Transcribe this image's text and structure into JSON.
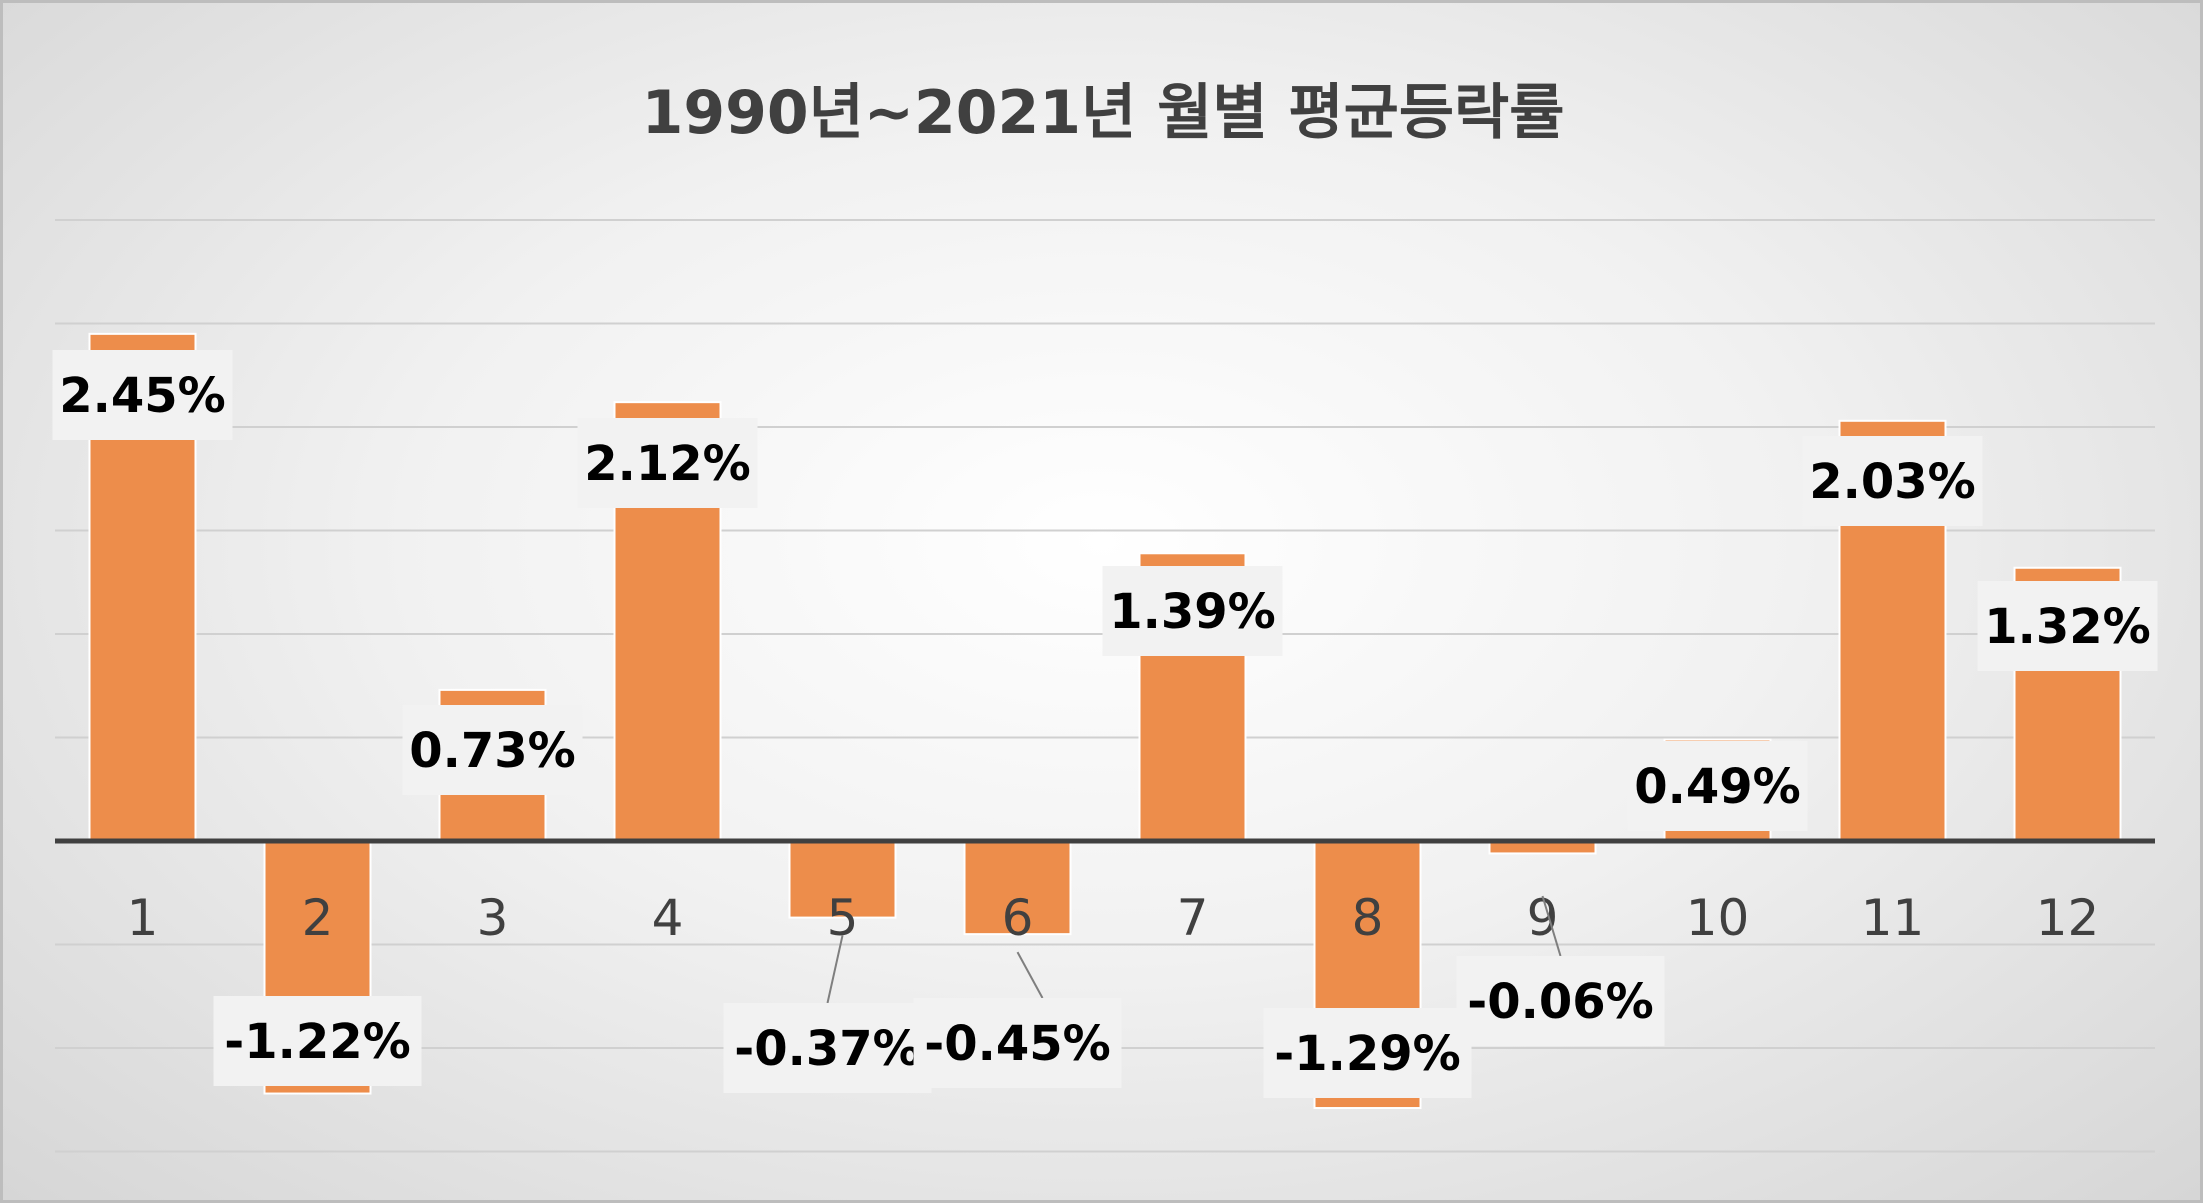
{
  "chart_data": {
    "type": "bar",
    "title": "1990년~2021년 월별 평균등락률",
    "xlabel": "",
    "ylabel": "",
    "categories": [
      "1",
      "2",
      "3",
      "4",
      "5",
      "6",
      "7",
      "8",
      "9",
      "10",
      "11",
      "12"
    ],
    "series": [
      {
        "values": [
          2.45,
          -1.22,
          0.73,
          2.12,
          -0.37,
          -0.45,
          1.39,
          -1.29,
          -0.06,
          0.49,
          2.03,
          1.32
        ]
      }
    ],
    "data_labels": [
      "2.45%",
      "-1.22%",
      "0.73%",
      "2.12%",
      "-0.37%",
      "-0.45%",
      "1.39%",
      "-1.29%",
      "-0.06%",
      "0.49%",
      "2.03%",
      "1.32%"
    ],
    "ylim": [
      -1.5,
      3.0
    ],
    "grid": true,
    "legend": "none",
    "colors": {
      "bar": "#ED8D4B",
      "bar_border": "#ffffff",
      "axis_line": "#404040",
      "grid": "#d0d0d0",
      "label_box": "#f2f2f2"
    }
  }
}
